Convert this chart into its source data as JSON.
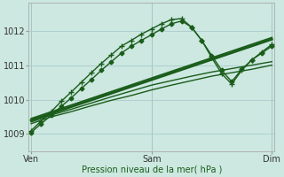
{
  "bg_color": "#cce8e0",
  "grid_color": "#aacccc",
  "line_color": "#1a5c1a",
  "title": "Pression niveau de la mer( hPa )",
  "xtick_labels": [
    "Ven",
    "Sam",
    "Dim"
  ],
  "xtick_positions": [
    0,
    48,
    96
  ],
  "ylim": [
    1008.5,
    1012.8
  ],
  "yticks": [
    1009,
    1010,
    1011,
    1012
  ],
  "xlim": [
    -1,
    97
  ],
  "series": [
    {
      "x": [
        0,
        8,
        16,
        24,
        32,
        40,
        48,
        56,
        64,
        72,
        80,
        88,
        96
      ],
      "y": [
        1009.3,
        1009.5,
        1009.65,
        1009.82,
        1009.98,
        1010.12,
        1010.28,
        1010.42,
        1010.55,
        1010.68,
        1010.78,
        1010.88,
        1011.0
      ],
      "marker": null,
      "lw": 1.0
    },
    {
      "x": [
        0,
        8,
        16,
        24,
        32,
        40,
        48,
        56,
        64,
        72,
        80,
        88,
        96
      ],
      "y": [
        1009.35,
        1009.55,
        1009.72,
        1009.9,
        1010.08,
        1010.25,
        1010.42,
        1010.55,
        1010.68,
        1010.8,
        1010.9,
        1011.0,
        1011.1
      ],
      "marker": null,
      "lw": 1.0
    },
    {
      "x": [
        0,
        96
      ],
      "y": [
        1009.4,
        1011.75
      ],
      "marker": null,
      "lw": 2.0
    },
    {
      "x": [
        0,
        96
      ],
      "y": [
        1009.45,
        1011.8
      ],
      "marker": null,
      "lw": 1.2
    },
    {
      "x": [
        0,
        4,
        8,
        12,
        16,
        20,
        24,
        28,
        32,
        36,
        40,
        44,
        48,
        52,
        56,
        60,
        64,
        68,
        72,
        76,
        80,
        84,
        88,
        92,
        96
      ],
      "y": [
        1009.05,
        1009.3,
        1009.55,
        1009.8,
        1010.05,
        1010.32,
        1010.58,
        1010.85,
        1011.1,
        1011.35,
        1011.55,
        1011.72,
        1011.88,
        1012.05,
        1012.2,
        1012.28,
        1012.1,
        1011.72,
        1011.28,
        1010.85,
        1010.52,
        1010.88,
        1011.15,
        1011.35,
        1011.55
      ],
      "marker": "D",
      "ms": 2.5,
      "lw": 1.0
    },
    {
      "x": [
        0,
        4,
        8,
        12,
        16,
        20,
        24,
        28,
        32,
        36,
        40,
        44,
        48,
        52,
        56,
        60,
        64,
        68,
        72,
        76,
        80,
        84,
        88,
        92,
        96
      ],
      "y": [
        1009.1,
        1009.38,
        1009.65,
        1009.95,
        1010.22,
        1010.5,
        1010.78,
        1011.05,
        1011.3,
        1011.55,
        1011.72,
        1011.9,
        1012.05,
        1012.2,
        1012.32,
        1012.35,
        1012.1,
        1011.72,
        1011.22,
        1010.75,
        1010.45,
        1010.85,
        1011.15,
        1011.38,
        1011.6
      ],
      "marker": "+",
      "ms": 4.0,
      "lw": 1.0
    }
  ],
  "vlines": [
    0,
    48,
    96
  ]
}
